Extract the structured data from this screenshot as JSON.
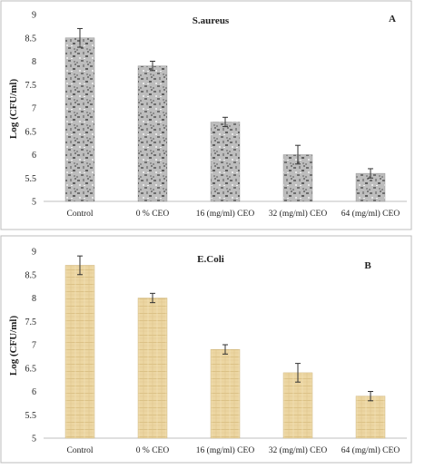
{
  "chart_data": [
    {
      "type": "bar",
      "title": "S.aureus",
      "panel_label": "A",
      "xlabel": "",
      "ylabel": "Log (CFU/ml)",
      "categories": [
        "Control",
        "0 %  CEO",
        "16 (mg/ml) CEO",
        "32 (mg/ml) CEO",
        "64 (mg/ml) CEO"
      ],
      "values": [
        8.5,
        7.9,
        6.7,
        6.0,
        5.6
      ],
      "errors": [
        0.2,
        0.1,
        0.1,
        0.2,
        0.1
      ],
      "ylim": [
        5,
        9
      ],
      "yticks": [
        "5",
        "5.5",
        "6",
        "6.5",
        "7",
        "7.5",
        "8",
        "8.5",
        "9"
      ],
      "bar_fill": "granite-gray",
      "grid": false
    },
    {
      "type": "bar",
      "title": "E.Coli",
      "panel_label": "B",
      "xlabel": "",
      "ylabel": "Log (CFU/ml)",
      "categories": [
        "Control",
        "0 %  CEO",
        "16 (mg/ml) CEO",
        "32 (mg/ml) CEO",
        "64 (mg/ml) CEO"
      ],
      "values": [
        8.7,
        8.0,
        6.9,
        6.4,
        5.9
      ],
      "errors": [
        0.2,
        0.1,
        0.1,
        0.2,
        0.1
      ],
      "ylim": [
        5,
        9
      ],
      "yticks": [
        "5",
        "5.5",
        "6",
        "6.5",
        "7",
        "7.5",
        "8",
        "8.5",
        "9"
      ],
      "bar_fill": "papyrus-tan",
      "grid": false
    }
  ],
  "colors": {
    "frame": "#bdbdbd",
    "axis": "#bfbfbf",
    "error_bar": "#333333",
    "bar_gray_base": "#bdbdbd",
    "bar_gray_dark": "#6e6e6e",
    "bar_tan_base": "#ecd6a2",
    "bar_tan_line": "#d8bd80"
  }
}
